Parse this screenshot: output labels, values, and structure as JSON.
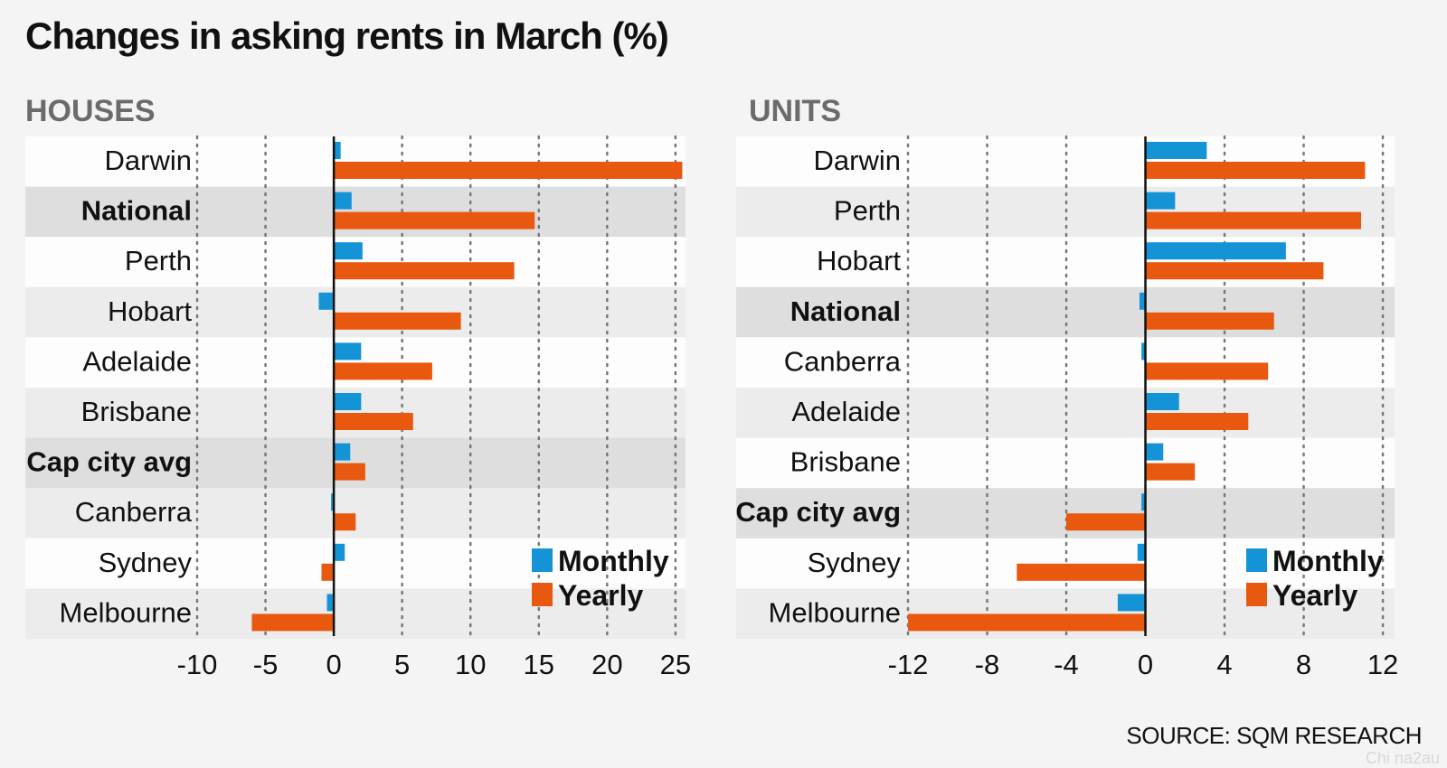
{
  "title": "Changes in asking rents in March (%)",
  "source": "SOURCE: SQM RESEARCH",
  "watermark": "Chi na2au",
  "colors": {
    "monthly": "#1493d6",
    "yearly": "#e8590f",
    "row_light": "#fdfdfd",
    "row_dark": "#ececec",
    "row_highlight": "#dedede",
    "grid": "#777777",
    "zero": "#111111"
  },
  "legend": {
    "monthly": "Monthly",
    "yearly": "Yearly"
  },
  "chart_data": [
    {
      "type": "bar",
      "orientation": "horizontal",
      "title": "HOUSES",
      "categories": [
        "Darwin",
        "National",
        "Perth",
        "Hobart",
        "Adelaide",
        "Brisbane",
        "Cap city avg",
        "Canberra",
        "Sydney",
        "Melbourne"
      ],
      "highlight": [
        "National",
        "Cap city avg"
      ],
      "series": [
        {
          "name": "Monthly",
          "values": [
            0.5,
            1.3,
            2.1,
            -1.1,
            2.0,
            2.0,
            1.2,
            -0.2,
            0.8,
            -0.5
          ]
        },
        {
          "name": "Yearly",
          "values": [
            25.5,
            14.7,
            13.2,
            9.3,
            7.2,
            5.8,
            2.3,
            1.6,
            -0.9,
            -6.0
          ]
        }
      ],
      "xlim": [
        -10,
        26
      ],
      "xticks": [
        -10,
        -5,
        0,
        5,
        10,
        15,
        20,
        25
      ],
      "grid": true,
      "legend_position": "bottom-right"
    },
    {
      "type": "bar",
      "orientation": "horizontal",
      "title": "UNITS",
      "categories": [
        "Darwin",
        "Perth",
        "Hobart",
        "National",
        "Canberra",
        "Adelaide",
        "Brisbane",
        "Cap city avg",
        "Sydney",
        "Melbourne"
      ],
      "highlight": [
        "National",
        "Cap city avg"
      ],
      "series": [
        {
          "name": "Monthly",
          "values": [
            3.1,
            1.5,
            7.1,
            -0.3,
            -0.2,
            1.7,
            0.9,
            -0.2,
            -0.4,
            -1.4
          ]
        },
        {
          "name": "Yearly",
          "values": [
            11.1,
            10.9,
            9.0,
            6.5,
            6.2,
            5.2,
            2.5,
            -4.0,
            -6.5,
            -12.0
          ]
        }
      ],
      "xlim": [
        -12,
        12.5
      ],
      "xticks": [
        -12,
        -8,
        -4,
        0,
        4,
        8,
        12
      ],
      "grid": true,
      "legend_position": "bottom-right"
    }
  ]
}
